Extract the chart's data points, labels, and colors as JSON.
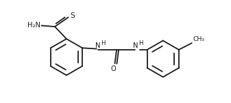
{
  "bg_color": "#ffffff",
  "line_color": "#1a1a1a",
  "line_width": 1.3,
  "font_size": 7.2,
  "fig_width": 3.37,
  "fig_height": 1.51,
  "dpi": 100,
  "xlim": [
    -0.5,
    9.5
  ],
  "ylim": [
    -0.3,
    4.3
  ]
}
